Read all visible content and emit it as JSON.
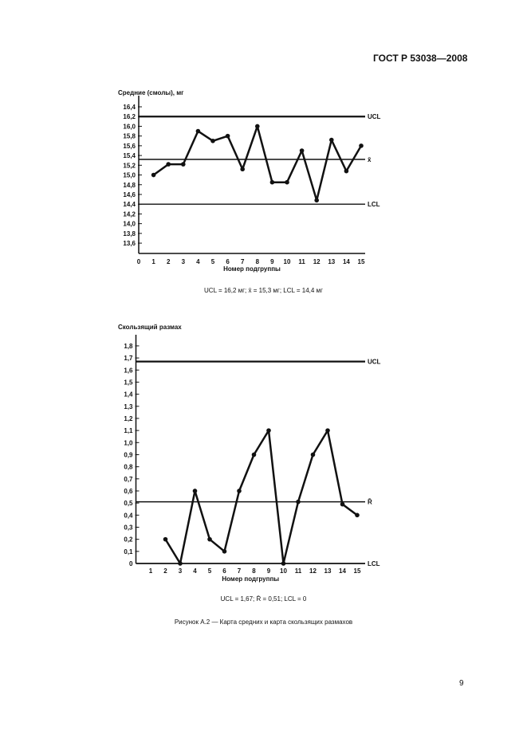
{
  "header": {
    "standard": "ГОСТ Р 53038—2008"
  },
  "chart_data": [
    {
      "type": "line",
      "title": "Средние (смолы), мг",
      "xlabel": "Номер подгруппы",
      "ylabel": "Средние (смолы), мг",
      "x_ticks": [
        "0",
        "1",
        "2",
        "3",
        "4",
        "5",
        "6",
        "7",
        "8",
        "9",
        "10",
        "11",
        "12",
        "13",
        "14",
        "15"
      ],
      "y_ticks": [
        "16,4",
        "16,2",
        "16,0",
        "15,8",
        "15,6",
        "15,4",
        "15,2",
        "15,0",
        "14,8",
        "14,6",
        "14,4",
        "14,2",
        "14,0",
        "13,8",
        "13,6"
      ],
      "ylim": [
        13.4,
        16.5
      ],
      "x": [
        1,
        2,
        3,
        4,
        5,
        6,
        7,
        8,
        9,
        10,
        11,
        12,
        13,
        14,
        15
      ],
      "values": [
        15.0,
        15.22,
        15.22,
        15.9,
        15.7,
        15.8,
        15.12,
        16.0,
        14.85,
        14.85,
        15.5,
        14.48,
        15.72,
        15.08,
        15.6
      ],
      "control_lines": [
        {
          "label": "UCL",
          "value": 16.2,
          "bold": true
        },
        {
          "label": "x̄",
          "value": 15.32,
          "bold": false
        },
        {
          "label": "LCL",
          "value": 14.4,
          "bold": false
        }
      ],
      "caption": "UCL = 16,2 мг; x̄ = 15,3 мг; LCL = 14,4 мг"
    },
    {
      "type": "line",
      "title": "Скользящий размах",
      "xlabel": "Номер подгруппы",
      "ylabel": "Скользящий размах",
      "x_ticks": [
        "1",
        "2",
        "3",
        "4",
        "5",
        "6",
        "7",
        "8",
        "9",
        "10",
        "11",
        "12",
        "13",
        "14",
        "15"
      ],
      "y_ticks": [
        "0",
        "0,1",
        "0,2",
        "0,3",
        "0,4",
        "0,5",
        "0,6",
        "0,7",
        "0,8",
        "0,9",
        "1,0",
        "1,1",
        "1,2",
        "1,3",
        "1,4",
        "1,5",
        "1,6",
        "1,7",
        "1,8"
      ],
      "ylim": [
        0,
        1.9
      ],
      "x": [
        2,
        3,
        4,
        5,
        6,
        7,
        8,
        9,
        10,
        11,
        12,
        13,
        14,
        15
      ],
      "values": [
        0.2,
        0.0,
        0.6,
        0.2,
        0.1,
        0.6,
        0.9,
        1.1,
        0.0,
        0.51,
        0.9,
        1.1,
        0.49,
        0.4
      ],
      "control_lines": [
        {
          "label": "UCL",
          "value": 1.67,
          "bold": true
        },
        {
          "label": "R̄",
          "value": 0.51,
          "bold": false
        },
        {
          "label": "LCL",
          "value": 0,
          "bold": false
        }
      ],
      "caption": "UCL = 1,67; R̄ = 0,51; LCL = 0"
    }
  ],
  "figure_caption": "Рисунок А.2 — Карта средних и карта скользящих размахов",
  "page_number": "9"
}
